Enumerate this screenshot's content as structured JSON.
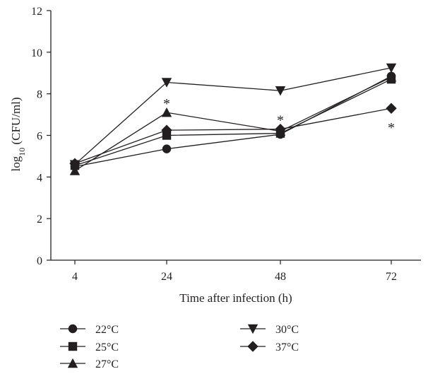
{
  "chart_data": {
    "type": "line",
    "title": "",
    "xlabel": "Time after infection (h)",
    "ylabel_main": "log",
    "ylabel_sub": "10",
    "ylabel_rest": " (CFU/ml)",
    "x": [
      4,
      24,
      48,
      72
    ],
    "x_tick_labels": [
      "4",
      "24",
      "48",
      "72"
    ],
    "ylim": [
      0,
      12
    ],
    "y_ticks": [
      0,
      2,
      4,
      6,
      8,
      10,
      12
    ],
    "y_tick_labels": [
      "0",
      "2",
      "4",
      "6",
      "8",
      "10",
      "12"
    ],
    "grid": false,
    "legend_position": "bottom",
    "series": [
      {
        "name": "22°C",
        "marker": "circle",
        "values": [
          4.5,
          5.35,
          6.05,
          8.85
        ]
      },
      {
        "name": "25°C",
        "marker": "square",
        "values": [
          4.55,
          6.0,
          6.1,
          8.7
        ]
      },
      {
        "name": "27°C",
        "marker": "triangle-up",
        "values": [
          4.3,
          7.1,
          6.2,
          8.8
        ]
      },
      {
        "name": "30°C",
        "marker": "triangle-down",
        "values": [
          4.6,
          8.55,
          8.15,
          9.25
        ]
      },
      {
        "name": "37°C",
        "marker": "diamond",
        "values": [
          4.65,
          6.25,
          6.3,
          7.3
        ]
      }
    ],
    "annotations": [
      {
        "text": "*",
        "x": 24,
        "y": 7.65
      },
      {
        "text": "*",
        "x": 48,
        "y": 6.85
      },
      {
        "text": "*",
        "x": 72,
        "y": 6.5
      }
    ]
  }
}
